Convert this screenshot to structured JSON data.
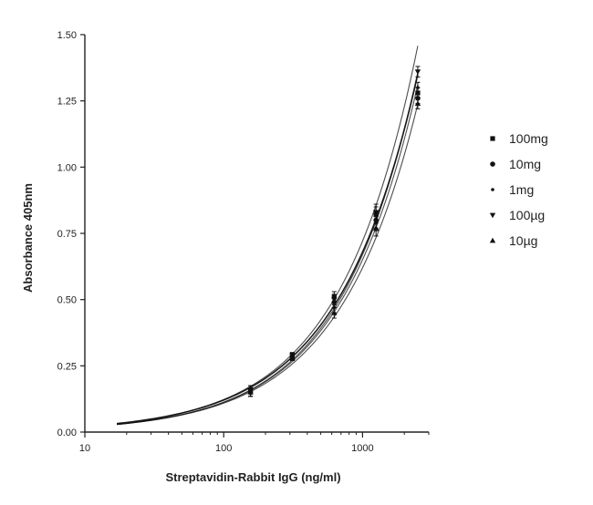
{
  "chart_data": {
    "type": "scatter",
    "title": "",
    "xlabel": "Streptavidin-Rabbit IgG (ng/ml)",
    "ylabel": "Absorbance 405nm",
    "x_scale": "log",
    "xlim": [
      10,
      3000
    ],
    "ylim": [
      0,
      1.5
    ],
    "x_ticks": [
      {
        "value": 10,
        "label": "10"
      },
      {
        "value": 100,
        "label": "100"
      },
      {
        "value": 1000,
        "label": "1000"
      }
    ],
    "y_ticks": [
      {
        "value": 0,
        "label": "0.00"
      },
      {
        "value": 0.25,
        "label": "0.25"
      },
      {
        "value": 0.5,
        "label": "0.50"
      },
      {
        "value": 0.75,
        "label": "0.75"
      },
      {
        "value": 1.0,
        "label": "1.00"
      },
      {
        "value": 1.25,
        "label": "1.25"
      },
      {
        "value": 1.5,
        "label": "1.50"
      }
    ],
    "grid": false,
    "legend_position": "right",
    "curve_fit": true,
    "curve_x_start": 17,
    "series": [
      {
        "name": "100mg",
        "marker": "square",
        "x": [
          156,
          312,
          625,
          1250,
          2500
        ],
        "y": [
          0.16,
          0.29,
          0.51,
          0.82,
          1.28
        ],
        "err": [
          0.015,
          0.01,
          0.02,
          0.03,
          0.02
        ],
        "curve_scale": 1.0
      },
      {
        "name": "10mg",
        "marker": "circle",
        "x": [
          156,
          312,
          625,
          1250,
          2500
        ],
        "y": [
          0.15,
          0.28,
          0.49,
          0.8,
          1.26
        ],
        "err": [
          0.015,
          0.01,
          0.02,
          0.03,
          0.02
        ],
        "curve_scale": 0.985
      },
      {
        "name": "1mg",
        "marker": "small-circle",
        "x": [
          156,
          312,
          625,
          1250,
          2500
        ],
        "y": [
          0.15,
          0.28,
          0.47,
          0.79,
          1.3
        ],
        "err": [
          0.015,
          0.01,
          0.02,
          0.03,
          0.02
        ],
        "curve_scale": 1.015
      },
      {
        "name": "100µg",
        "marker": "triangle-down",
        "x": [
          156,
          312,
          625,
          1250,
          2500
        ],
        "y": [
          0.16,
          0.29,
          0.5,
          0.83,
          1.36
        ],
        "err": [
          0.015,
          0.01,
          0.02,
          0.03,
          0.02
        ],
        "curve_scale": 1.04
      },
      {
        "name": "10µg",
        "marker": "triangle-up",
        "x": [
          156,
          312,
          625,
          1250,
          2500
        ],
        "y": [
          0.15,
          0.28,
          0.45,
          0.77,
          1.24
        ],
        "err": [
          0.015,
          0.01,
          0.02,
          0.03,
          0.02
        ],
        "curve_scale": 0.97
      }
    ],
    "colors": {
      "marks": "#111111",
      "axis": "#222222"
    }
  }
}
